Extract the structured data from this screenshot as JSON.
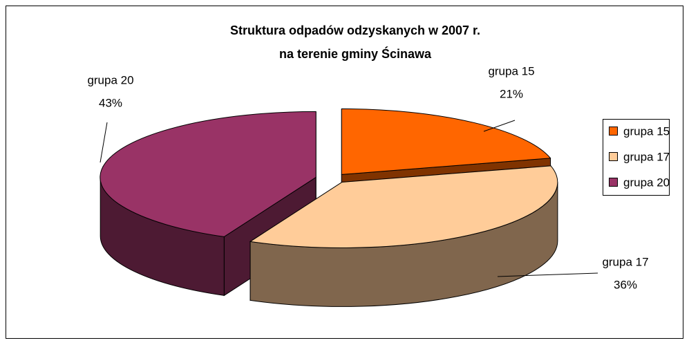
{
  "chart_data": {
    "type": "pie",
    "title": [
      "Struktura odpadów odzyskanych w 2007 r.",
      "na terenie gminy Ścinawa"
    ],
    "categories": [
      "grupa 15",
      "grupa 17",
      "grupa 20"
    ],
    "values": [
      21,
      36,
      43
    ],
    "value_labels": [
      "21%",
      "36%",
      "43%"
    ],
    "colors": [
      "#ff6600",
      "#ffcc99",
      "#993366"
    ],
    "legend": "right"
  }
}
